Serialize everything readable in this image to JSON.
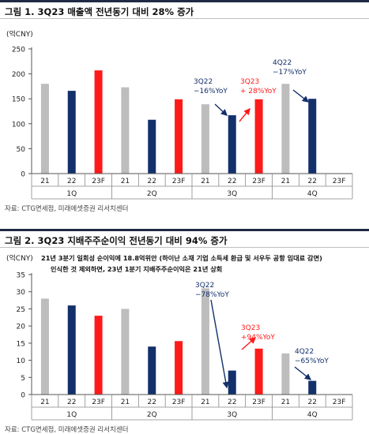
{
  "charts": [
    {
      "title": "그림 1. 3Q23 매출액 전년동기 대비 28% 증가",
      "source": "자료: CTG면세점, 미래에셋증권 리서치센터",
      "chart_data": {
        "type": "bar",
        "unit_label": "(억CNY)",
        "ylim": [
          0,
          250
        ],
        "yticks": [
          0,
          50,
          100,
          150,
          200,
          250
        ],
        "grid": false,
        "categories": [
          "21",
          "22",
          "23F",
          "21",
          "22",
          "23F",
          "21",
          "22",
          "23F",
          "21",
          "22",
          "23F"
        ],
        "groups": [
          "1Q",
          "2Q",
          "3Q",
          "4Q"
        ],
        "values": [
          180,
          166,
          207,
          173,
          108,
          149,
          139,
          117,
          149,
          180,
          150,
          null
        ],
        "colors": [
          "#bdbdbd",
          "#13306b",
          "#ff1a1a",
          "#bdbdbd",
          "#13306b",
          "#ff1a1a",
          "#bdbdbd",
          "#13306b",
          "#ff1a1a",
          "#bdbdbd",
          "#13306b",
          "#ff1a1a"
        ],
        "annotations": [
          {
            "lines": [
              "3Q22",
              "−16%YoY"
            ],
            "color": "#13306b"
          },
          {
            "lines": [
              "3Q23",
              "+ 28%YoY"
            ],
            "color": "#ff1a1a"
          },
          {
            "lines": [
              "4Q22",
              "−17%YoY"
            ],
            "color": "#13306b"
          }
        ]
      }
    },
    {
      "title": "그림 2. 3Q23 지배주주순이익 전년동기 대비 94% 증가",
      "source": "자료: CTG면세점, 미래에셋증권 리서치센터",
      "chart_data": {
        "type": "bar",
        "unit_label": "(억CNY)",
        "note": [
          "21년 3분기 일회성 순이익에 18.8억위안 (하이난 소재 기업 소득세 환급 및 서우두 공항 임대료 감면)",
          "인식한 것 제외하면, 23년 1분기 지배주주순이익은 21년 상회"
        ],
        "ylim": [
          0,
          35
        ],
        "yticks": [
          0,
          5,
          10,
          15,
          20,
          25,
          30,
          35
        ],
        "grid": false,
        "categories": [
          "21",
          "22",
          "23F",
          "21",
          "22",
          "23F",
          "21",
          "22",
          "23F",
          "21",
          "22",
          "23F"
        ],
        "groups": [
          "1Q",
          "2Q",
          "3Q",
          "4Q"
        ],
        "values": [
          28,
          26,
          23,
          25,
          14,
          15.6,
          31,
          7,
          13.4,
          12,
          4,
          null
        ],
        "colors": [
          "#bdbdbd",
          "#13306b",
          "#ff1a1a",
          "#bdbdbd",
          "#13306b",
          "#ff1a1a",
          "#bdbdbd",
          "#13306b",
          "#ff1a1a",
          "#bdbdbd",
          "#13306b",
          "#ff1a1a"
        ],
        "annotations": [
          {
            "lines": [
              "3Q22",
              "−78%YoY"
            ],
            "color": "#13306b"
          },
          {
            "lines": [
              "3Q23",
              "+94%YoY"
            ],
            "color": "#ff1a1a"
          },
          {
            "lines": [
              "4Q22",
              "−65%YoY"
            ],
            "color": "#13306b"
          }
        ]
      }
    }
  ]
}
